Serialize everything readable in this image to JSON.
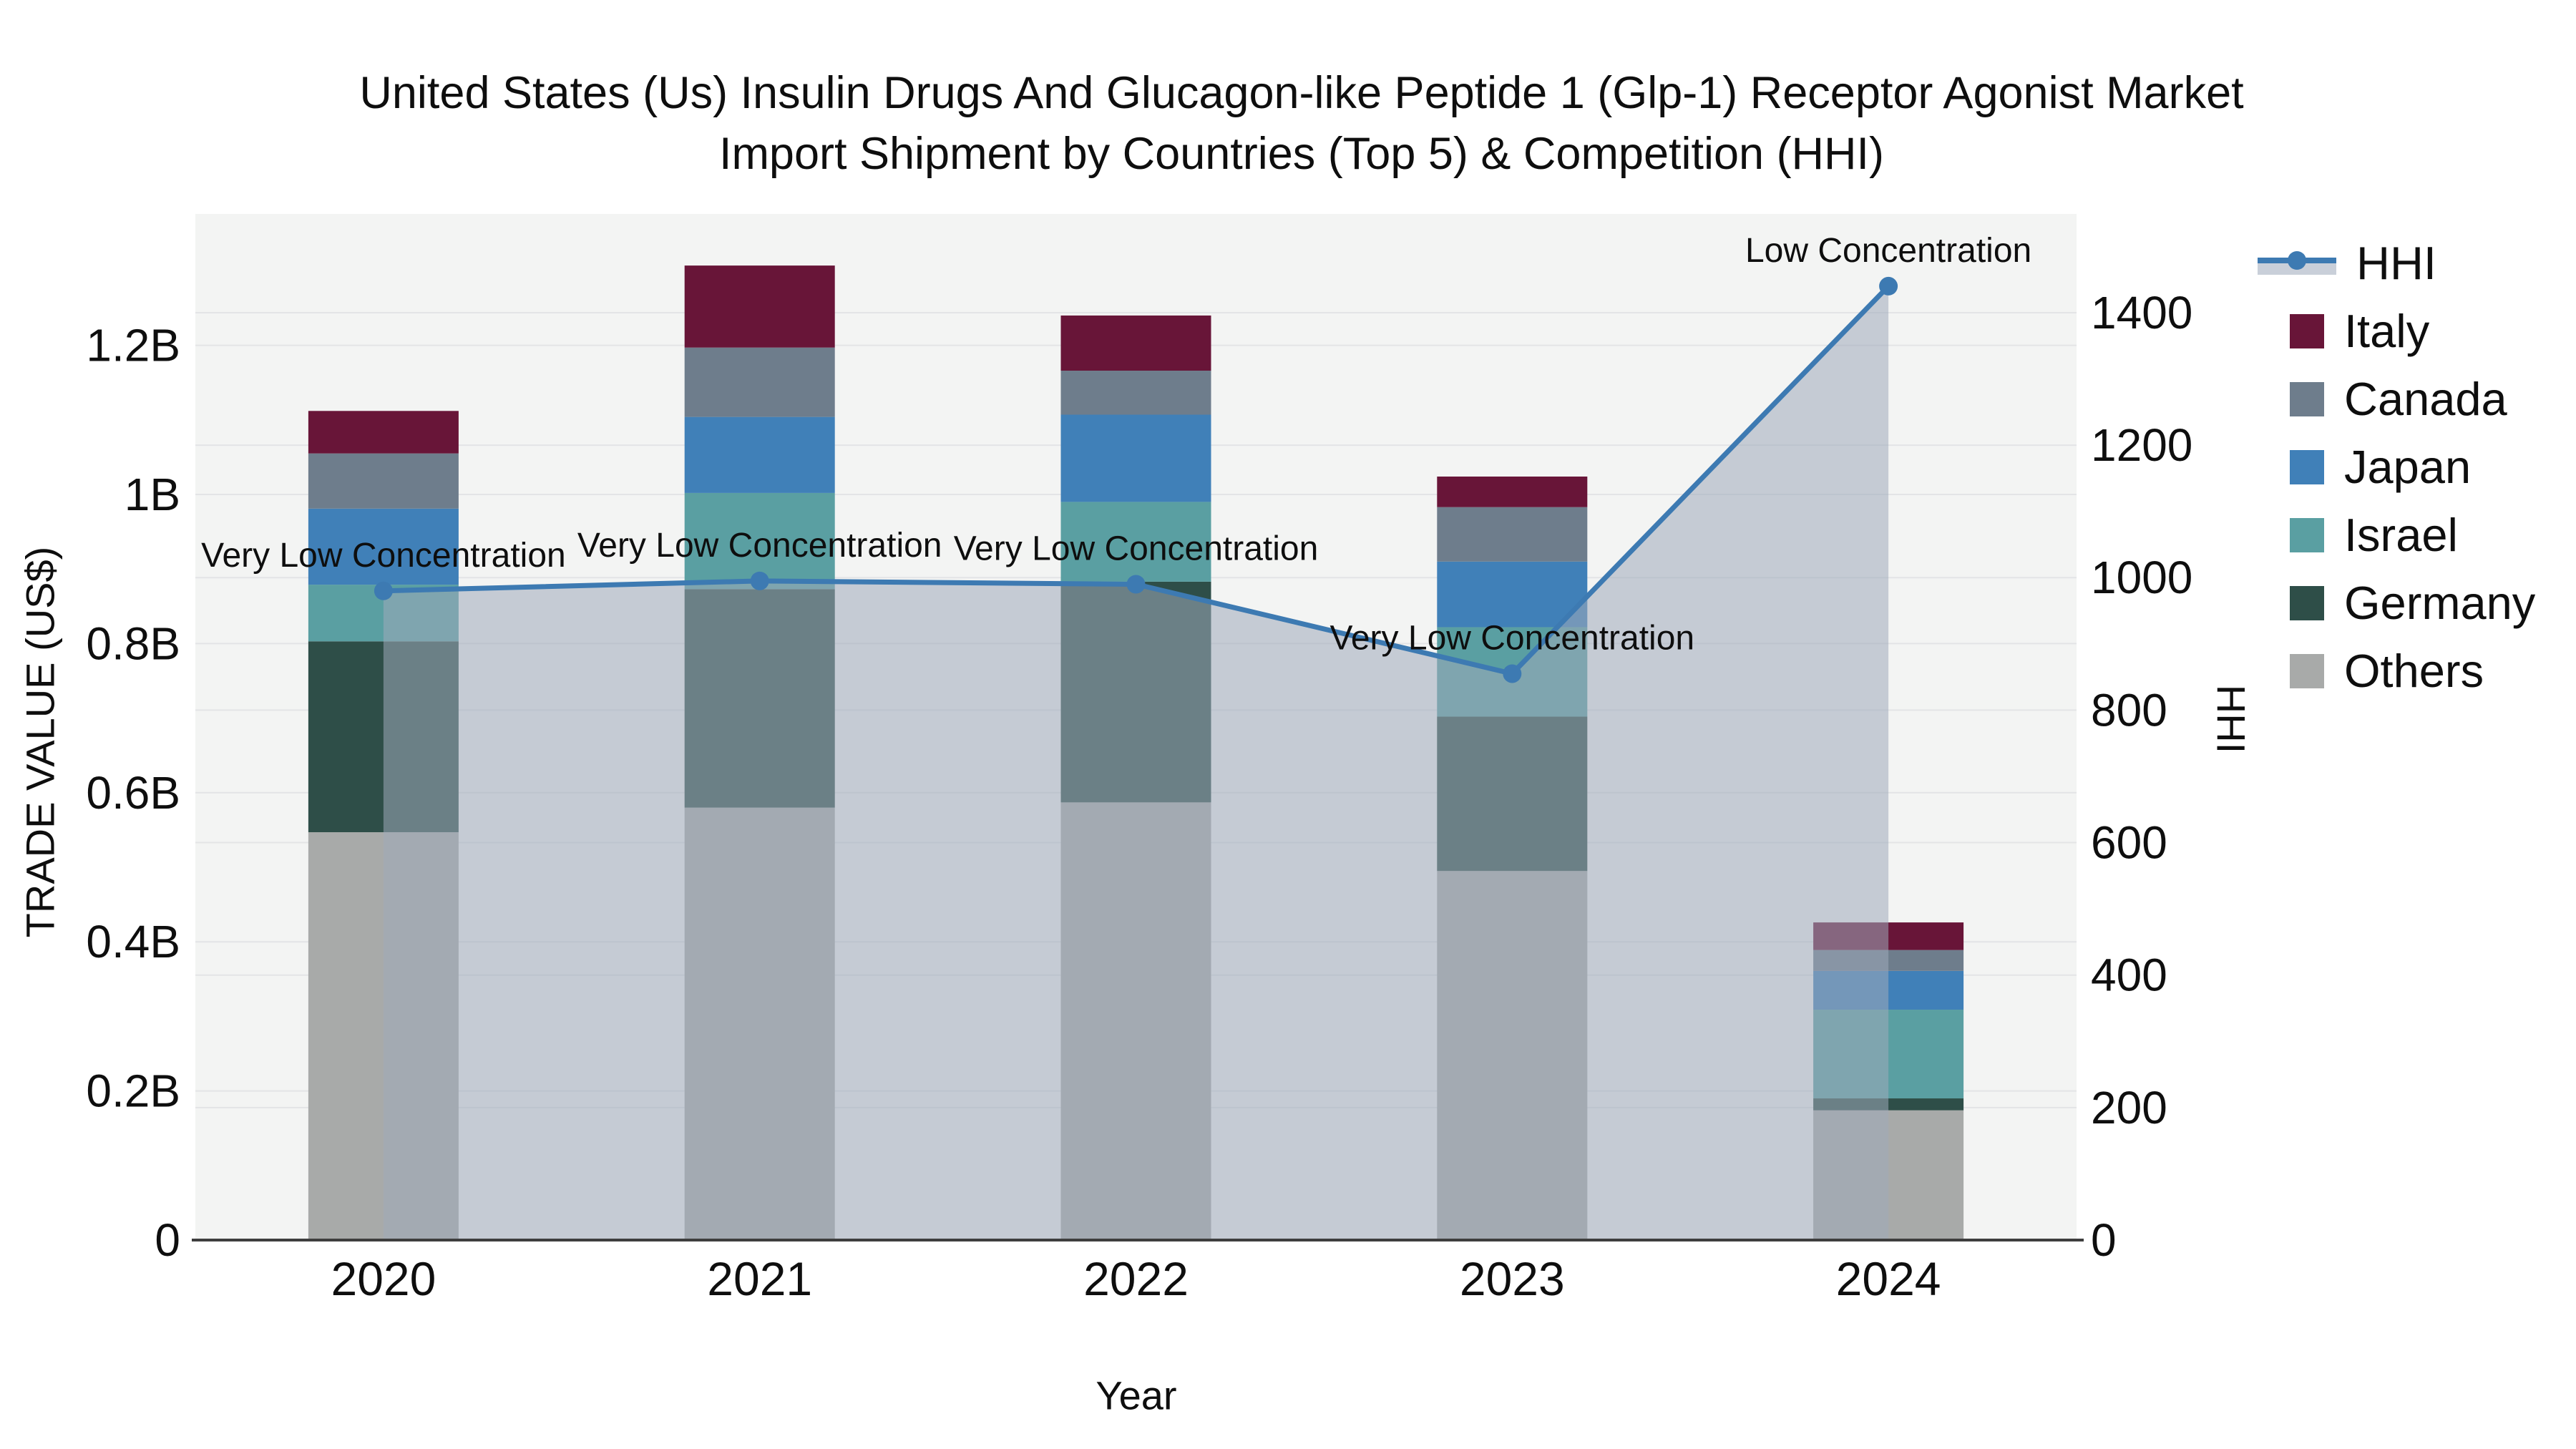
{
  "title": {
    "line1": "United States (Us) Insulin Drugs And Glucagon-like Peptide 1 (Glp-1) Receptor Agonist Market",
    "line2": "Import Shipment by Countries (Top 5) & Competition (HHI)"
  },
  "chart_data": {
    "type": "bar",
    "subtype": "stacked bars with secondary-axis line+area (HHI)",
    "categories": [
      "2020",
      "2021",
      "2022",
      "2023",
      "2024"
    ],
    "bar_series_bottom_to_top": [
      {
        "name": "Others",
        "color": "#a8aaa9",
        "values": [
          0.547,
          0.58,
          0.587,
          0.495,
          0.174
        ]
      },
      {
        "name": "Germany",
        "color": "#2e4e48",
        "values": [
          0.256,
          0.293,
          0.296,
          0.207,
          0.016
        ]
      },
      {
        "name": "Israel",
        "color": "#5a9fa2",
        "values": [
          0.076,
          0.129,
          0.107,
          0.12,
          0.119
        ]
      },
      {
        "name": "Japan",
        "color": "#4080b8",
        "values": [
          0.102,
          0.102,
          0.117,
          0.088,
          0.052
        ]
      },
      {
        "name": "Canada",
        "color": "#6e7d8c",
        "values": [
          0.074,
          0.093,
          0.059,
          0.073,
          0.028
        ]
      },
      {
        "name": "Italy",
        "color": "#681538",
        "values": [
          0.057,
          0.11,
          0.074,
          0.041,
          0.037
        ]
      }
    ],
    "bar_totals_billion": [
      1.112,
      1.307,
      1.24,
      1.024,
      0.426
    ],
    "line_series": {
      "name": "HHI",
      "color": "#3d7ab2",
      "area_fill": "rgba(158,170,186,0.55)",
      "values": [
        980,
        995,
        990,
        855,
        1440
      ],
      "annotations": [
        "Very Low Concentration",
        "Very Low Concentration",
        "Very Low Concentration",
        "Very Low Concentration",
        "Low Concentration"
      ]
    },
    "y_left": {
      "label": "TRADE VALUE (US$)",
      "tick_labels": [
        "0",
        "0.2B",
        "0.4B",
        "0.6B",
        "0.8B",
        "1B",
        "1.2B"
      ],
      "tick_values": [
        0,
        0.2,
        0.4,
        0.6,
        0.8,
        1.0,
        1.2
      ],
      "max": 1.3762
    },
    "y_right": {
      "label": "HHI",
      "tick_labels": [
        "0",
        "200",
        "400",
        "600",
        "800",
        "1000",
        "1200",
        "1400"
      ],
      "tick_values": [
        0,
        200,
        400,
        600,
        800,
        1000,
        1200,
        1400
      ],
      "max": 1549
    },
    "x": {
      "label": "Year"
    },
    "legend": [
      {
        "label": "HHI",
        "type": "line"
      },
      {
        "label": "Italy",
        "type": "swatch",
        "color": "#681538"
      },
      {
        "label": "Canada",
        "type": "swatch",
        "color": "#6e7d8c"
      },
      {
        "label": "Japan",
        "type": "swatch",
        "color": "#4080b8"
      },
      {
        "label": "Israel",
        "type": "swatch",
        "color": "#5a9fa2"
      },
      {
        "label": "Germany",
        "type": "swatch",
        "color": "#2e4e48"
      },
      {
        "label": "Others",
        "type": "swatch",
        "color": "#a8aaa9"
      }
    ],
    "style": {
      "plot_bg": "#f3f4f3",
      "grid_color": "#e3e4e6",
      "axis_line_color": "#3e3e3e",
      "text_color": "#0e0e0e",
      "legend_band_color": "#c9cfd9"
    }
  }
}
